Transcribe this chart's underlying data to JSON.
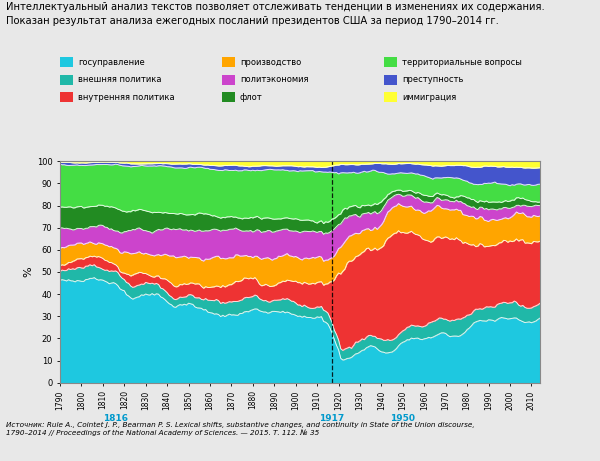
{
  "title_line1": "Интеллектуальный анализ текстов позволяет отслеживать тенденции в изменениях их содержания.",
  "title_line2": "Показан результат анализа ежегодных посланий президентов США за период 1790–2014 гг.",
  "source_text": "Источник: Rule A., Cointet J. P., Bearman P. S. Lexical shifts, substantive changes, and continuity in State of the Union discourse,\n1790–2014 // Proceedings of the National Academy of Sciences. — 2015. Т. 112. № 35",
  "ylabel": "%",
  "ylim": [
    0,
    100
  ],
  "legend_items": [
    {
      "label": "госуправление",
      "color": "#1EC8E0"
    },
    {
      "label": "внешняя политика",
      "color": "#1EC8E0"
    },
    {
      "label": "внутренняя политика",
      "color": "#EE3333"
    },
    {
      "label": "производство",
      "color": "#FFA500"
    },
    {
      "label": "политэкономия",
      "color": "#CC44CC"
    },
    {
      "label": "флот",
      "color": "#228B22"
    },
    {
      "label": "территориальные вопросы",
      "color": "#44DD44"
    },
    {
      "label": "преступность",
      "color": "#4455CC"
    },
    {
      "label": "иммиграция",
      "color": "#FFFF33"
    }
  ],
  "layer_colors": [
    "#1EC8E0",
    "#20B8A8",
    "#EE3333",
    "#FFA500",
    "#CC44CC",
    "#228B22",
    "#44DD44",
    "#4455CC",
    "#FFFF33"
  ],
  "vline_x": 1917,
  "anno_years": [
    1816,
    1917,
    1950
  ],
  "bg_color": "#f0f0f0",
  "plot_bg": "#ffffff"
}
